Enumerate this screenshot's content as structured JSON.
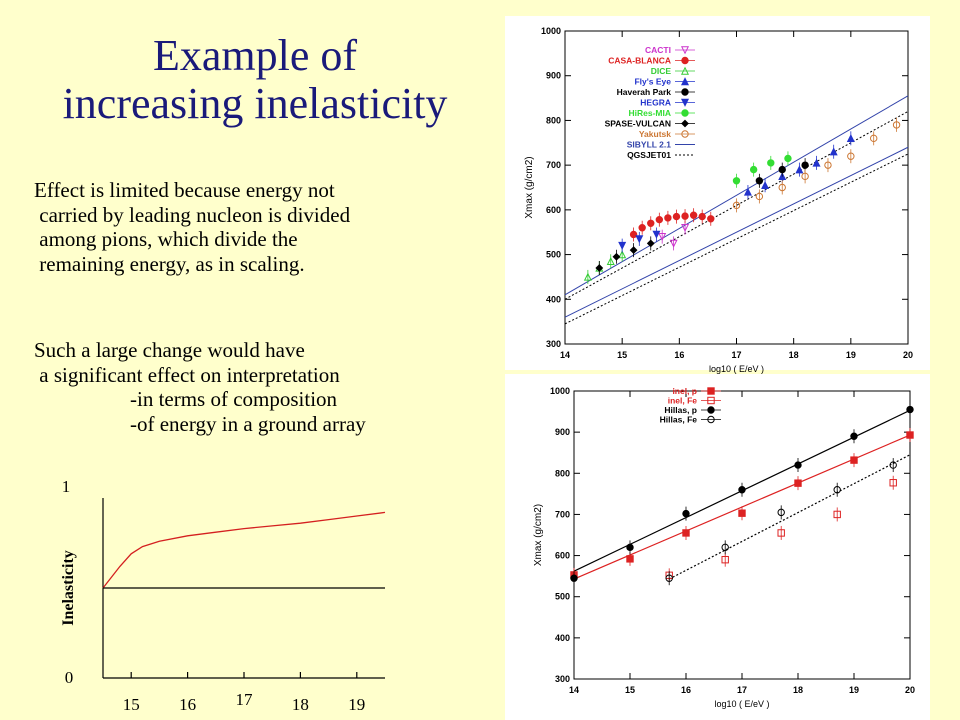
{
  "slide": {
    "title_line1": "Example of",
    "title_line2": "increasing inelasticity",
    "para1": [
      "Effect is limited because energy not",
      " carried by leading nucleon is divided",
      " among pions, which divide the",
      " remaining energy, as in scaling."
    ],
    "para2": [
      "Such a large change would have",
      " a significant effect on interpretation",
      "-in terms of composition",
      "-of energy in a ground array"
    ]
  },
  "colors": {
    "title": "#1a1a7a",
    "background": "#ffffcc",
    "curve_red": "#d42020"
  },
  "chart_data": [
    {
      "type": "line",
      "title": "",
      "xlabel": "",
      "ylabel": "Inelasticity",
      "x_ticks": [
        "15",
        "16",
        "17",
        "18",
        "19"
      ],
      "y_ticks": [
        "0",
        "1"
      ],
      "xlim": [
        14.5,
        19.5
      ],
      "ylim": [
        0,
        1
      ],
      "series": [
        {
          "color": "#d42020",
          "x": [
            14.5,
            14.8,
            15.0,
            15.2,
            15.5,
            16.0,
            16.5,
            17.0,
            17.5,
            18.0,
            18.5,
            19.0,
            19.5
          ],
          "y": [
            0.5,
            0.62,
            0.69,
            0.73,
            0.76,
            0.79,
            0.81,
            0.83,
            0.845,
            0.86,
            0.88,
            0.9,
            0.92
          ]
        },
        {
          "color": "#000000",
          "x": [
            14.5,
            19.5
          ],
          "y": [
            0.5,
            0.5
          ]
        }
      ]
    },
    {
      "type": "scatter",
      "title": "",
      "xlabel": "log10 ( E/eV )",
      "ylabel": "Xmax (g/cm2)",
      "xlim": [
        14,
        20
      ],
      "ylim": [
        300,
        1000
      ],
      "x_ticks": [
        "14",
        "15",
        "16",
        "17",
        "18",
        "19",
        "20"
      ],
      "y_ticks": [
        "300",
        "400",
        "500",
        "600",
        "700",
        "800",
        "900",
        "1000"
      ],
      "legend_position": "top-left",
      "series": [
        {
          "name": "CACTI",
          "color": "#cc33cc",
          "marker": "triangle-down-open",
          "x": [
            15.7,
            15.9,
            16.1
          ],
          "y": [
            540,
            525,
            560
          ]
        },
        {
          "name": "CASA-BLANCA",
          "color": "#dd2222",
          "marker": "circle",
          "x": [
            15.2,
            15.35,
            15.5,
            15.65,
            15.8,
            15.95,
            16.1,
            16.25,
            16.4,
            16.55
          ],
          "y": [
            545,
            560,
            570,
            578,
            582,
            585,
            586,
            588,
            585,
            580
          ]
        },
        {
          "name": "DICE",
          "color": "#33cc33",
          "marker": "triangle-up-open",
          "x": [
            14.4,
            14.6,
            14.8,
            15.0
          ],
          "y": [
            450,
            470,
            485,
            500
          ]
        },
        {
          "name": "Fly's Eye",
          "color": "#2233cc",
          "marker": "triangle-up",
          "x": [
            17.2,
            17.5,
            17.8,
            18.1,
            18.4,
            18.7,
            19.0
          ],
          "y": [
            640,
            655,
            675,
            690,
            705,
            730,
            760
          ]
        },
        {
          "name": "Haverah Park",
          "color": "#000000",
          "marker": "circle",
          "x": [
            17.4,
            17.8,
            18.2
          ],
          "y": [
            665,
            690,
            700
          ]
        },
        {
          "name": "HEGRA",
          "color": "#2233cc",
          "marker": "triangle-down",
          "x": [
            15.0,
            15.3,
            15.6
          ],
          "y": [
            520,
            535,
            545
          ]
        },
        {
          "name": "HiRes-MIA",
          "color": "#33dd33",
          "marker": "circle",
          "x": [
            17.0,
            17.3,
            17.6,
            17.9
          ],
          "y": [
            665,
            690,
            705,
            715
          ]
        },
        {
          "name": "SPASE-VULCAN",
          "color": "#000000",
          "marker": "diamond",
          "x": [
            14.6,
            14.9,
            15.2,
            15.5
          ],
          "y": [
            470,
            495,
            510,
            525
          ]
        },
        {
          "name": "Yakutsk",
          "color": "#cc7733",
          "marker": "circle-open",
          "x": [
            17.0,
            17.4,
            17.8,
            18.2,
            18.6,
            19.0,
            19.4,
            19.8
          ],
          "y": [
            610,
            630,
            650,
            675,
            700,
            720,
            760,
            790
          ]
        }
      ],
      "lines": [
        {
          "name": "SIBYLL 2.1",
          "color": "#3344aa",
          "style": "solid"
        },
        {
          "name": "QGSJET01",
          "color": "#000000",
          "style": "dotted"
        }
      ]
    },
    {
      "type": "scatter",
      "title": "",
      "xlabel": "log10 ( E/eV )",
      "ylabel": "Xmax (g/cm2)",
      "xlim": [
        14,
        20
      ],
      "ylim": [
        300,
        1000
      ],
      "x_ticks": [
        "14",
        "15",
        "16",
        "17",
        "18",
        "19",
        "20"
      ],
      "y_ticks": [
        "300",
        "400",
        "500",
        "600",
        "700",
        "800",
        "900",
        "1000"
      ],
      "legend_position": "top-left",
      "series": [
        {
          "name": "inel, p",
          "color": "#dd2222",
          "marker": "square",
          "x": [
            14,
            15,
            16,
            17,
            18,
            19,
            20
          ],
          "y": [
            553,
            592,
            655,
            703,
            776,
            832,
            893
          ]
        },
        {
          "name": "inel, Fe",
          "color": "#dd2222",
          "marker": "square-open",
          "x": [
            15.7,
            16.7,
            17.7,
            18.7,
            19.7
          ],
          "y": [
            552,
            590,
            655,
            700,
            777
          ]
        },
        {
          "name": "Hillas, p",
          "color": "#000000",
          "marker": "circle",
          "x": [
            14,
            15,
            16,
            17,
            18,
            19,
            20
          ],
          "y": [
            545,
            620,
            702,
            760,
            820,
            890,
            955
          ]
        },
        {
          "name": "Hillas, Fe",
          "color": "#000000",
          "marker": "circle-open",
          "x": [
            15.7,
            16.7,
            17.7,
            18.7,
            19.7
          ],
          "y": [
            545,
            620,
            705,
            760,
            820
          ]
        }
      ],
      "fits": [
        {
          "color": "#000000",
          "style": "solid",
          "x": [
            14,
            20
          ],
          "y": [
            562,
            953
          ]
        },
        {
          "color": "#dd2222",
          "style": "solid",
          "x": [
            14,
            20
          ],
          "y": [
            543,
            893
          ]
        },
        {
          "color": "#000000",
          "style": "dotted",
          "x": [
            15.7,
            20
          ],
          "y": [
            543,
            845
          ]
        }
      ]
    }
  ]
}
